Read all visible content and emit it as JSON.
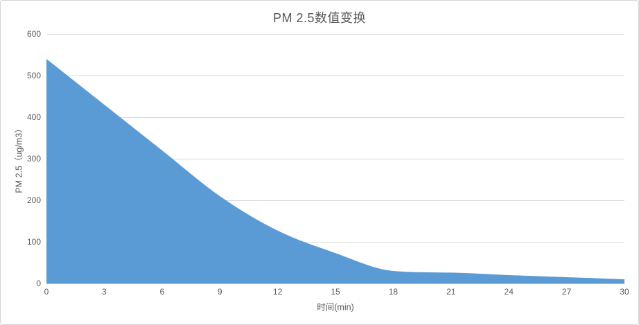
{
  "chart_data": {
    "type": "area",
    "title": "PM 2.5数值变换",
    "xlabel": "时间(min)",
    "ylabel": "PM 2.5（ug/m3）",
    "x": [
      0,
      3,
      6,
      9,
      12,
      15,
      18,
      21,
      24,
      27,
      30
    ],
    "values": [
      540,
      430,
      320,
      210,
      127,
      73,
      30,
      26,
      20,
      15,
      10
    ],
    "x_ticks": [
      0,
      3,
      6,
      9,
      12,
      15,
      18,
      21,
      24,
      27,
      30
    ],
    "y_ticks": [
      0,
      100,
      200,
      300,
      400,
      500,
      600
    ],
    "xlim": [
      0,
      30
    ],
    "ylim": [
      0,
      600
    ],
    "grid": "horizontal",
    "legend": "none",
    "colors": {
      "area_fill": "#5B9BD5",
      "gridline": "#D9D9D9",
      "axis_line": "#BFBFBF",
      "text": "#595959",
      "background": "#FFFFFF",
      "frame_border": "#D4D4D4"
    }
  }
}
